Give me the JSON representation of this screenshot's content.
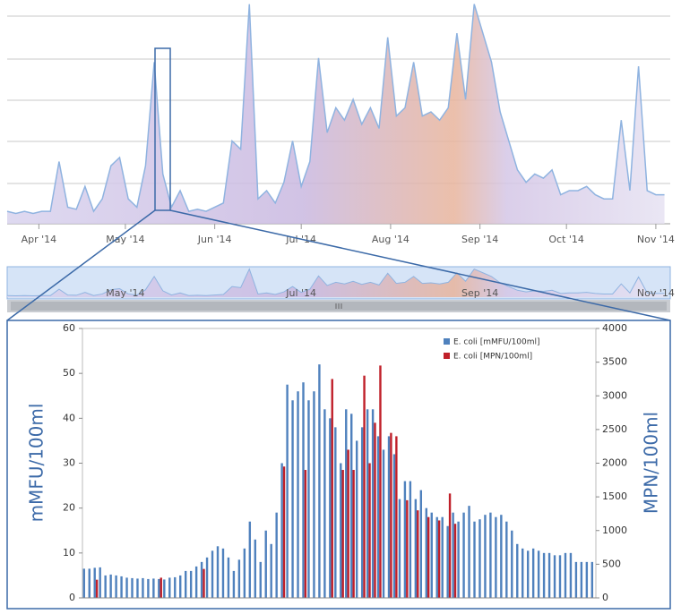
{
  "chart_data": [
    {
      "type": "area",
      "color": "#8fb3e0",
      "x": [
        0,
        3,
        6,
        9,
        12,
        15,
        18,
        21,
        24,
        27,
        30,
        33,
        36,
        39,
        42,
        45,
        48,
        51,
        54,
        57,
        60,
        63,
        66,
        69,
        72,
        75,
        78,
        81,
        84,
        87,
        90,
        93,
        96,
        99,
        102,
        105,
        108,
        111,
        114,
        117,
        120,
        123,
        126,
        129,
        132,
        135,
        138,
        141,
        144,
        147,
        150,
        153,
        156,
        159,
        162,
        165,
        168,
        171,
        174,
        177,
        180,
        183,
        186,
        189,
        192,
        195,
        198,
        201,
        204,
        207,
        210,
        213,
        216,
        219,
        222,
        225,
        228
      ],
      "values": [
        0.3,
        0.25,
        0.3,
        0.25,
        0.3,
        0.3,
        1.5,
        0.4,
        0.35,
        0.9,
        0.3,
        0.6,
        1.4,
        1.6,
        0.6,
        0.4,
        1.4,
        3.9,
        1.2,
        0.4,
        0.8,
        0.3,
        0.35,
        0.3,
        0.4,
        0.5,
        2.0,
        1.8,
        5.3,
        0.6,
        0.8,
        0.5,
        1.0,
        2.0,
        0.9,
        1.5,
        4.0,
        2.2,
        2.8,
        2.5,
        3.0,
        2.4,
        2.8,
        2.3,
        4.5,
        2.6,
        2.8,
        3.9,
        2.6,
        2.7,
        2.5,
        2.8,
        4.6,
        3.0,
        5.3,
        4.6,
        3.9,
        2.7,
        2.0,
        1.3,
        1.0,
        1.2,
        1.1,
        1.3,
        0.7,
        0.8,
        0.8,
        0.9,
        0.7,
        0.6,
        0.6,
        2.5,
        0.8,
        3.8,
        0.8,
        0.7,
        0.7
      ],
      "xlim": [
        0,
        230
      ],
      "ylim": [
        0,
        5.4
      ],
      "xticks": [
        {
          "value": 11,
          "label": "Apr '14"
        },
        {
          "value": 41,
          "label": "May '14"
        },
        {
          "value": 72,
          "label": "Jun '14"
        },
        {
          "value": 102,
          "label": "Jul '14"
        },
        {
          "value": 133,
          "label": "Aug '14"
        },
        {
          "value": 164,
          "label": "Sep '14"
        },
        {
          "value": 194,
          "label": "Oct '14"
        },
        {
          "value": 225,
          "label": "Nov '14"
        }
      ]
    },
    {
      "type": "bar",
      "ylabel": "mMFU/100ml",
      "y2label": "MPN/100ml",
      "ylim": [
        0,
        60
      ],
      "yticks": [
        0,
        10,
        20,
        30,
        40,
        50,
        60
      ],
      "y2lim": [
        0,
        4000
      ],
      "y2ticks": [
        0,
        500,
        1000,
        1500,
        2000,
        2500,
        3000,
        3500,
        4000
      ],
      "categories": [
        null,
        null,
        null,
        null,
        null,
        null,
        null,
        null,
        null,
        null,
        null,
        null,
        null,
        null,
        null,
        null,
        null,
        null,
        null,
        null,
        null,
        null,
        null,
        null,
        null,
        null,
        null,
        null,
        null,
        null,
        null,
        null,
        null,
        null,
        null,
        null,
        null,
        null,
        null,
        null,
        null,
        null,
        null,
        null,
        null,
        null,
        null,
        null,
        null,
        null,
        null,
        null,
        null,
        null,
        null,
        null,
        null,
        null,
        null,
        null,
        null,
        null,
        null,
        null,
        null,
        null,
        null,
        null,
        null,
        null,
        null,
        null,
        null,
        null,
        null,
        null,
        null,
        null,
        null,
        null,
        null,
        null,
        null,
        null,
        null,
        null,
        null,
        null,
        null,
        null,
        null,
        null,
        null,
        null,
        null,
        null
      ],
      "series": [
        {
          "name": "E. coli [mMFU/100ml]",
          "color": "#4f81bd",
          "values": [
            6.5,
            6.5,
            6.7,
            6.8,
            5,
            5.2,
            5,
            4.8,
            4.5,
            4.4,
            4.3,
            4.4,
            4.2,
            4.3,
            4.2,
            4.1,
            4.5,
            4.6,
            5,
            6,
            6,
            7,
            8,
            9,
            10.5,
            11.5,
            11,
            9,
            6,
            8.5,
            11,
            17,
            13,
            8,
            15,
            12,
            19,
            30,
            47.5,
            44,
            46,
            48,
            44,
            46,
            52,
            42,
            40,
            38,
            30,
            42,
            41,
            35,
            38,
            42,
            42,
            36,
            33,
            36,
            32,
            22,
            26,
            26,
            22,
            24,
            20,
            19,
            18,
            18,
            16,
            19,
            17,
            19,
            20.5,
            17,
            17.5,
            18.5,
            19,
            18,
            18.5,
            17,
            15,
            12,
            11,
            10.5,
            11,
            10.5,
            10,
            10,
            9.5,
            9.5,
            10,
            10,
            8,
            8,
            8,
            8
          ]
        },
        {
          "name": "E. coli [MPN/100ml]",
          "color": "#c0202a",
          "axis": "y2",
          "values": [
            null,
            null,
            270,
            null,
            null,
            null,
            null,
            null,
            null,
            null,
            null,
            null,
            null,
            null,
            300,
            null,
            null,
            null,
            null,
            null,
            null,
            null,
            430,
            null,
            null,
            null,
            null,
            null,
            null,
            null,
            null,
            null,
            null,
            null,
            null,
            null,
            null,
            1950,
            null,
            null,
            null,
            1900,
            null,
            null,
            null,
            null,
            3250,
            null,
            1900,
            2200,
            1900,
            null,
            3300,
            2000,
            2600,
            3450,
            null,
            2450,
            2400,
            null,
            1450,
            null,
            1300,
            null,
            1200,
            null,
            1150,
            null,
            1550,
            1100,
            null,
            null,
            null,
            null,
            null,
            null,
            null,
            null,
            null,
            null,
            null,
            null,
            null,
            null,
            null,
            null,
            null,
            null,
            null,
            null,
            null,
            null,
            null,
            null,
            null,
            null
          ]
        }
      ]
    }
  ]
}
